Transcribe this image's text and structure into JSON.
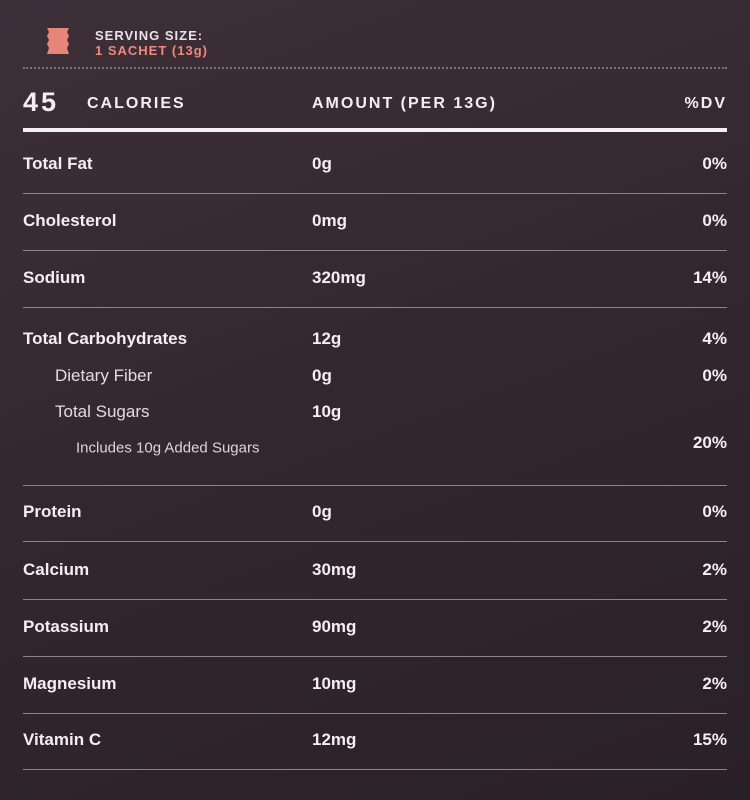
{
  "serving": {
    "label": "SERVING SIZE:",
    "value": "1 SACHET (13g)"
  },
  "header": {
    "calories": "45",
    "calories_label": "CALORIES",
    "amount": "AMOUNT (PER 13G)",
    "dv": "%DV"
  },
  "rows": [
    {
      "name": "Total Fat",
      "amount": "0g",
      "dv": "0%"
    },
    {
      "name": "Cholesterol",
      "amount": "0mg",
      "dv": "0%"
    },
    {
      "name": "Sodium",
      "amount": "320mg",
      "dv": "14%"
    },
    {
      "name": "Total Carbohydrates",
      "amount": "12g",
      "dv": "4%"
    },
    {
      "name": "Dietary Fiber",
      "amount": "0g",
      "dv": "0%"
    },
    {
      "name": "Total Sugars",
      "amount": "10g"
    },
    {
      "name": "Includes 10g Added Sugars",
      "dv": "20%"
    },
    {
      "name": "Protein",
      "amount": "0g",
      "dv": "0%"
    },
    {
      "name": "Calcium",
      "amount": "30mg",
      "dv": "2%"
    },
    {
      "name": "Potassium",
      "amount": "90mg",
      "dv": "2%"
    },
    {
      "name": "Magnesium",
      "amount": "10mg",
      "dv": "2%"
    },
    {
      "name": "Vitamin C",
      "amount": "12mg",
      "dv": "15%"
    }
  ]
}
